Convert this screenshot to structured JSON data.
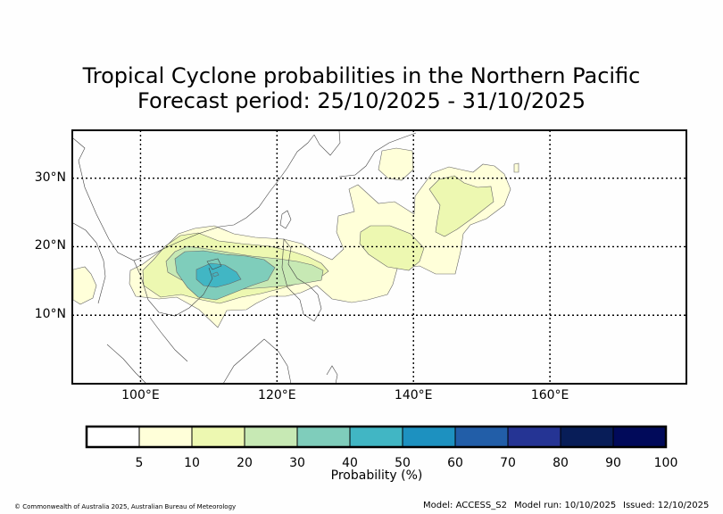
{
  "title": {
    "line1": "Tropical Cyclone probabilities in the Northern Pacific",
    "line2": "Forecast period: 25/10/2025 - 31/10/2025"
  },
  "map": {
    "lon_range": [
      90,
      180
    ],
    "lat_range": [
      0,
      37
    ],
    "lat_ticks": [
      {
        "value": 30,
        "label": "30°N"
      },
      {
        "value": 20,
        "label": "20°N"
      },
      {
        "value": 10,
        "label": "10°N"
      }
    ],
    "lon_ticks": [
      {
        "value": 100,
        "label": "100°E"
      },
      {
        "value": 120,
        "label": "120°E"
      },
      {
        "value": 140,
        "label": "140°E"
      },
      {
        "value": 160,
        "label": "160°E"
      }
    ]
  },
  "colorbar": {
    "title": "Probability (%)",
    "bins": [
      {
        "from": 0,
        "to": 5,
        "color": "#ffffff"
      },
      {
        "from": 5,
        "to": 10,
        "color": "#ffffd9"
      },
      {
        "from": 10,
        "to": 20,
        "color": "#edf8b1"
      },
      {
        "from": 20,
        "to": 30,
        "color": "#c7e9b4"
      },
      {
        "from": 30,
        "to": 40,
        "color": "#7fcdbb"
      },
      {
        "from": 40,
        "to": 50,
        "color": "#41b6c4"
      },
      {
        "from": 50,
        "to": 60,
        "color": "#1d91c0"
      },
      {
        "from": 60,
        "to": 70,
        "color": "#225ea8"
      },
      {
        "from": 70,
        "to": 80,
        "color": "#253494"
      },
      {
        "from": 80,
        "to": 90,
        "color": "#081d58"
      },
      {
        "from": 90,
        "to": 100,
        "color": "#010a5a"
      }
    ],
    "tick_labels": [
      "5",
      "10",
      "20",
      "30",
      "40",
      "50",
      "60",
      "70",
      "80",
      "90",
      "100"
    ]
  },
  "footer": {
    "copyright": "© Commonwealth of Australia 2025, Australian Bureau of Meteorology",
    "model": "Model: ACCESS_S2",
    "model_run": "Model run: 10/10/2025",
    "issued": "Issued: 12/10/2025"
  }
}
